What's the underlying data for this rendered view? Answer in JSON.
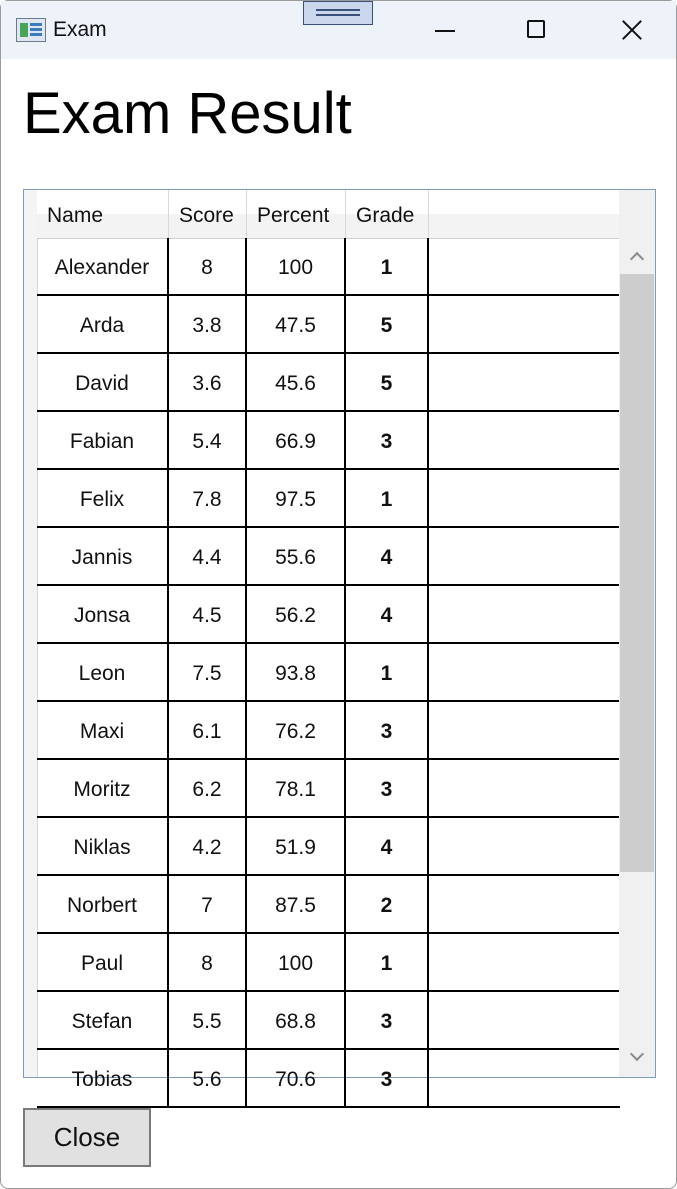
{
  "window": {
    "title": "Exam",
    "icon": "app-window-icon",
    "controls": [
      "minimize-icon",
      "maximize-icon",
      "close-icon"
    ]
  },
  "heading": "Exam Result",
  "table": {
    "columns": [
      "Name",
      "Score",
      "Percent",
      "Grade"
    ],
    "rows": [
      {
        "name": "Alexander",
        "score": "8",
        "percent": "100",
        "grade": "1"
      },
      {
        "name": "Arda",
        "score": "3.8",
        "percent": "47.5",
        "grade": "5"
      },
      {
        "name": "David",
        "score": "3.6",
        "percent": "45.6",
        "grade": "5"
      },
      {
        "name": "Fabian",
        "score": "5.4",
        "percent": "66.9",
        "grade": "3"
      },
      {
        "name": "Felix",
        "score": "7.8",
        "percent": "97.5",
        "grade": "1"
      },
      {
        "name": "Jannis",
        "score": "4.4",
        "percent": "55.6",
        "grade": "4"
      },
      {
        "name": "Jonsa",
        "score": "4.5",
        "percent": "56.2",
        "grade": "4"
      },
      {
        "name": "Leon",
        "score": "7.5",
        "percent": "93.8",
        "grade": "1"
      },
      {
        "name": "Maxi",
        "score": "6.1",
        "percent": "76.2",
        "grade": "3"
      },
      {
        "name": "Moritz",
        "score": "6.2",
        "percent": "78.1",
        "grade": "3"
      },
      {
        "name": "Niklas",
        "score": "4.2",
        "percent": "51.9",
        "grade": "4"
      },
      {
        "name": "Norbert",
        "score": "7",
        "percent": "87.5",
        "grade": "2"
      },
      {
        "name": "Paul",
        "score": "8",
        "percent": "100",
        "grade": "1"
      },
      {
        "name": "Stefan",
        "score": "5.5",
        "percent": "68.8",
        "grade": "3"
      },
      {
        "name": "Tobias",
        "score": "5.6",
        "percent": "70.6",
        "grade": "3"
      }
    ]
  },
  "close_button": "Close"
}
